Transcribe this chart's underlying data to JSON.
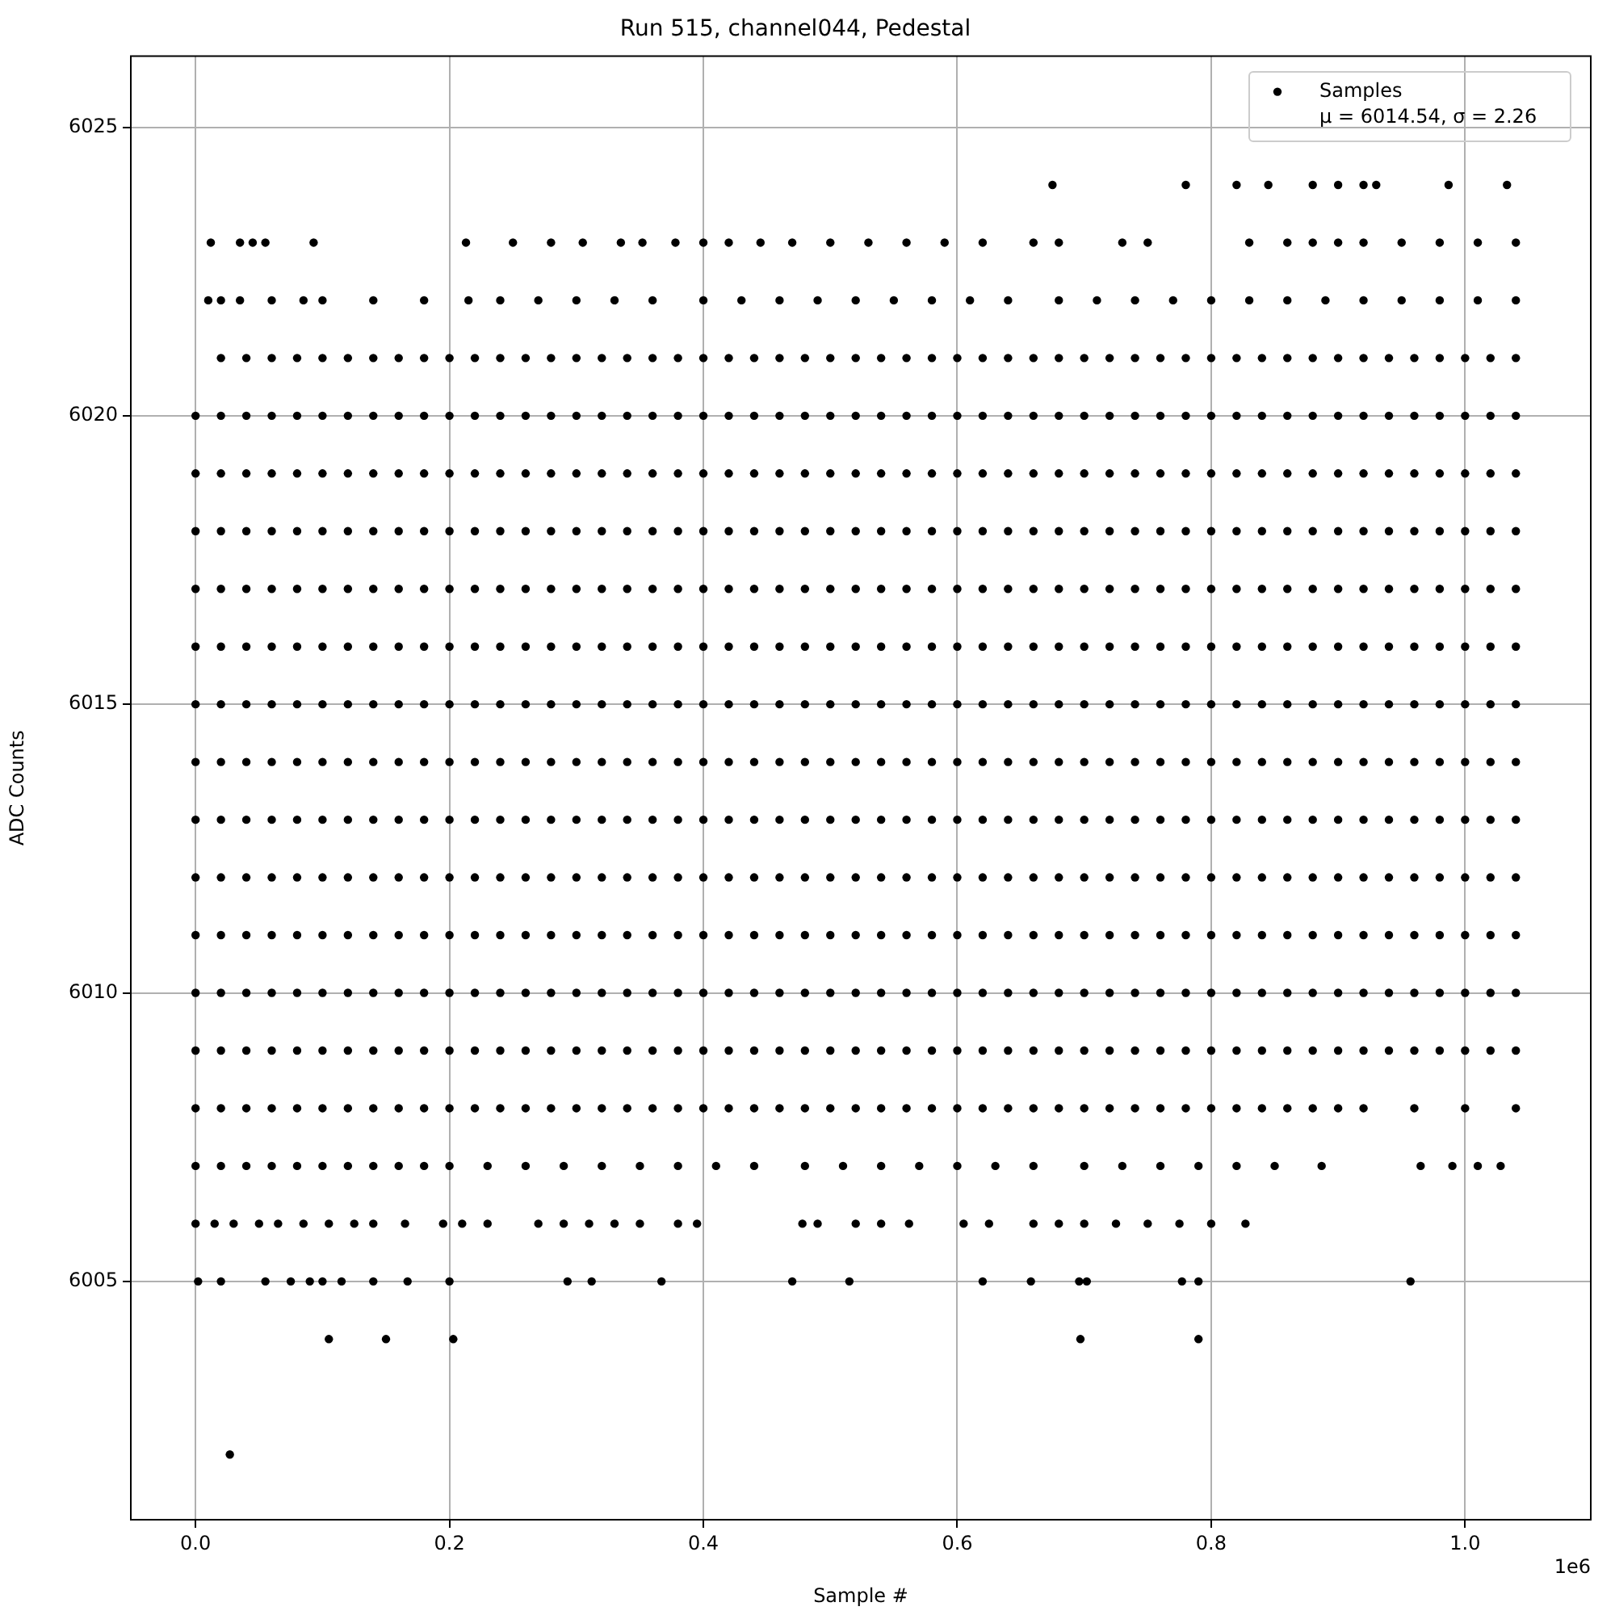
{
  "chart_data": {
    "type": "scatter",
    "title": "Run 515, channel044, Pedestal",
    "xlabel": "Sample #",
    "ylabel": "ADC Counts",
    "annotations": [
      "μ = 6014.54, σ = 2.26",
      "1e6"
    ],
    "x": [
      0,
      0.02,
      0.04,
      0.06,
      0.08,
      0.1,
      0.12,
      0.14,
      0.16,
      0.18,
      0.2,
      0.22,
      0.24,
      0.26,
      0.28,
      0.3,
      0.32,
      0.34,
      0.36,
      0.38,
      0.4,
      0.42,
      0.44,
      0.46,
      0.48,
      0.5,
      0.52,
      0.54,
      0.56,
      0.58,
      0.6,
      0.62,
      0.64,
      0.66,
      0.68,
      0.7,
      0.72,
      0.74,
      0.76,
      0.78,
      0.8,
      0.82,
      0.84,
      0.86,
      0.88,
      0.9,
      0.92,
      0.94,
      0.96,
      0.98,
      1,
      1.02,
      1.04
    ],
    "xlim": [
      -0.051,
      1.099
    ],
    "xticks": [
      {
        "value": 0,
        "label": "0.0"
      },
      0.2,
      0.4,
      0.6,
      0.8,
      {
        "value": 1,
        "label": "1.0"
      }
    ],
    "ylim": [
      6000.87,
      6026.23
    ],
    "yticks": [
      6005,
      6010,
      6015,
      6020,
      6025
    ],
    "grid": true,
    "legend": "top right",
    "marker": "circle",
    "series": [
      {
        "name": "Samples",
        "color": "#000000",
        "values": [
          6015,
          6015,
          6015,
          6015,
          6015,
          6015,
          6015,
          6015,
          6015,
          6015,
          6015,
          6015,
          6015,
          6015,
          6015,
          6015,
          6015,
          6015,
          6015,
          6015,
          6015,
          6015,
          6015,
          6015,
          6015,
          6015,
          6015,
          6015,
          6015,
          6015,
          6015,
          6015,
          6015,
          6015,
          6015,
          6015,
          6015,
          6015,
          6015,
          6015,
          6015,
          6015,
          6015,
          6015,
          6015,
          6015,
          6015,
          6015,
          6015,
          6015,
          6015,
          6015,
          6015
        ]
      },
      {
        "color": "#000000",
        "values": [
          6009,
          6009,
          6009,
          6009,
          6009,
          6009,
          6009,
          6009,
          6009,
          6009,
          6009,
          6009,
          6009,
          6009,
          6009,
          6009,
          6009,
          6009,
          6009,
          6009,
          6009,
          6009,
          6009,
          6009,
          6009,
          6009,
          6009,
          6009,
          6009,
          6009,
          6009,
          6009,
          6009,
          6009,
          6009,
          6009,
          6009,
          6009,
          6009,
          6009,
          6009,
          6009,
          6009,
          6009,
          6009,
          6009,
          6009,
          6009,
          6009,
          6009,
          6009,
          6009,
          6009
        ]
      },
      {
        "color": "#000000",
        "values": [
          6010,
          6010,
          6010,
          6010,
          6010,
          6010,
          6010,
          6010,
          6010,
          6010,
          6010,
          6010,
          6010,
          6010,
          6010,
          6010,
          6010,
          6010,
          6010,
          6010,
          6010,
          6010,
          6010,
          6010,
          6010,
          6010,
          6010,
          6010,
          6010,
          6010,
          6010,
          6010,
          6010,
          6010,
          6010,
          6010,
          6010,
          6010,
          6010,
          6010,
          6010,
          6010,
          6010,
          6010,
          6010,
          6010,
          6010,
          6010,
          6010,
          6010,
          6010,
          6010,
          6010
        ]
      },
      {
        "color": "#000000",
        "values": [
          6011,
          6011,
          6011,
          6011,
          6011,
          6011,
          6011,
          6011,
          6011,
          6011,
          6011,
          6011,
          6011,
          6011,
          6011,
          6011,
          6011,
          6011,
          6011,
          6011,
          6011,
          6011,
          6011,
          6011,
          6011,
          6011,
          6011,
          6011,
          6011,
          6011,
          6011,
          6011,
          6011,
          6011,
          6011,
          6011,
          6011,
          6011,
          6011,
          6011,
          6011,
          6011,
          6011,
          6011,
          6011,
          6011,
          6011,
          6011,
          6011,
          6011,
          6011,
          6011,
          6011
        ]
      },
      {
        "color": "#000000",
        "values": [
          6012,
          6012,
          6012,
          6012,
          6012,
          6012,
          6012,
          6012,
          6012,
          6012,
          6012,
          6012,
          6012,
          6012,
          6012,
          6012,
          6012,
          6012,
          6012,
          6012,
          6012,
          6012,
          6012,
          6012,
          6012,
          6012,
          6012,
          6012,
          6012,
          6012,
          6012,
          6012,
          6012,
          6012,
          6012,
          6012,
          6012,
          6012,
          6012,
          6012,
          6012,
          6012,
          6012,
          6012,
          6012,
          6012,
          6012,
          6012,
          6012,
          6012,
          6012,
          6012,
          6012
        ]
      },
      {
        "color": "#000000",
        "values": [
          6013,
          6013,
          6013,
          6013,
          6013,
          6013,
          6013,
          6013,
          6013,
          6013,
          6013,
          6013,
          6013,
          6013,
          6013,
          6013,
          6013,
          6013,
          6013,
          6013,
          6013,
          6013,
          6013,
          6013,
          6013,
          6013,
          6013,
          6013,
          6013,
          6013,
          6013,
          6013,
          6013,
          6013,
          6013,
          6013,
          6013,
          6013,
          6013,
          6013,
          6013,
          6013,
          6013,
          6013,
          6013,
          6013,
          6013,
          6013,
          6013,
          6013,
          6013,
          6013,
          6013
        ]
      },
      {
        "color": "#000000",
        "values": [
          6014,
          6014,
          6014,
          6014,
          6014,
          6014,
          6014,
          6014,
          6014,
          6014,
          6014,
          6014,
          6014,
          6014,
          6014,
          6014,
          6014,
          6014,
          6014,
          6014,
          6014,
          6014,
          6014,
          6014,
          6014,
          6014,
          6014,
          6014,
          6014,
          6014,
          6014,
          6014,
          6014,
          6014,
          6014,
          6014,
          6014,
          6014,
          6014,
          6014,
          6014,
          6014,
          6014,
          6014,
          6014,
          6014,
          6014,
          6014,
          6014,
          6014,
          6014,
          6014,
          6014
        ]
      },
      {
        "color": "#000000",
        "values": [
          6016,
          6016,
          6016,
          6016,
          6016,
          6016,
          6016,
          6016,
          6016,
          6016,
          6016,
          6016,
          6016,
          6016,
          6016,
          6016,
          6016,
          6016,
          6016,
          6016,
          6016,
          6016,
          6016,
          6016,
          6016,
          6016,
          6016,
          6016,
          6016,
          6016,
          6016,
          6016,
          6016,
          6016,
          6016,
          6016,
          6016,
          6016,
          6016,
          6016,
          6016,
          6016,
          6016,
          6016,
          6016,
          6016,
          6016,
          6016,
          6016,
          6016,
          6016,
          6016,
          6016
        ]
      },
      {
        "color": "#000000",
        "values": [
          6017,
          6017,
          6017,
          6017,
          6017,
          6017,
          6017,
          6017,
          6017,
          6017,
          6017,
          6017,
          6017,
          6017,
          6017,
          6017,
          6017,
          6017,
          6017,
          6017,
          6017,
          6017,
          6017,
          6017,
          6017,
          6017,
          6017,
          6017,
          6017,
          6017,
          6017,
          6017,
          6017,
          6017,
          6017,
          6017,
          6017,
          6017,
          6017,
          6017,
          6017,
          6017,
          6017,
          6017,
          6017,
          6017,
          6017,
          6017,
          6017,
          6017,
          6017,
          6017,
          6017
        ]
      },
      {
        "color": "#000000",
        "values": [
          6018,
          6018,
          6018,
          6018,
          6018,
          6018,
          6018,
          6018,
          6018,
          6018,
          6018,
          6018,
          6018,
          6018,
          6018,
          6018,
          6018,
          6018,
          6018,
          6018,
          6018,
          6018,
          6018,
          6018,
          6018,
          6018,
          6018,
          6018,
          6018,
          6018,
          6018,
          6018,
          6018,
          6018,
          6018,
          6018,
          6018,
          6018,
          6018,
          6018,
          6018,
          6018,
          6018,
          6018,
          6018,
          6018,
          6018,
          6018,
          6018,
          6018,
          6018,
          6018,
          6018
        ]
      },
      {
        "color": "#000000",
        "values": [
          6019,
          6019,
          6019,
          6019,
          6019,
          6019,
          6019,
          6019,
          6019,
          6019,
          6019,
          6019,
          6019,
          6019,
          6019,
          6019,
          6019,
          6019,
          6019,
          6019,
          6019,
          6019,
          6019,
          6019,
          6019,
          6019,
          6019,
          6019,
          6019,
          6019,
          6019,
          6019,
          6019,
          6019,
          6019,
          6019,
          6019,
          6019,
          6019,
          6019,
          6019,
          6019,
          6019,
          6019,
          6019,
          6019,
          6019,
          6019,
          6019,
          6019,
          6019,
          6019,
          6019
        ]
      },
      {
        "color": "#000000",
        "values": [
          6020,
          6020,
          6020,
          6020,
          6020,
          6020,
          6020,
          6020,
          6020,
          6020,
          6020,
          6020,
          6020,
          6020,
          6020,
          6020,
          6020,
          6020,
          6020,
          6020,
          6020,
          6020,
          6020,
          6020,
          6020,
          6020,
          6020,
          6020,
          6020,
          6020,
          6020,
          6020,
          6020,
          6020,
          6020,
          6020,
          6020,
          6020,
          6020,
          6020,
          6020,
          6020,
          6020,
          6020,
          6020,
          6020,
          6020,
          6020,
          6020,
          6020,
          6020,
          6020,
          6020
        ]
      },
      {
        "color": "#000000",
        "values": [
          null,
          6021,
          6021,
          6021,
          6021,
          6021,
          6021,
          6021,
          6021,
          6021,
          6021,
          6021,
          6021,
          6021,
          6021,
          6021,
          6021,
          6021,
          6021,
          6021,
          6021,
          6021,
          6021,
          6021,
          6021,
          6021,
          6021,
          6021,
          6021,
          6021,
          6021,
          6021,
          6021,
          6021,
          6021,
          6021,
          6021,
          6021,
          6021,
          6021,
          6021,
          6021,
          6021,
          6021,
          6021,
          6021,
          6021,
          6021,
          6021,
          6021,
          6021,
          6021,
          6021
        ]
      },
      {
        "color": "#000000",
        "values": [
          6008,
          6008,
          6008,
          6008,
          6008,
          6008,
          6008,
          6008,
          6008,
          6008,
          6008,
          6008,
          6008,
          6008,
          6008,
          6008,
          6008,
          6008,
          6008,
          6008,
          6008,
          6008,
          6008,
          6008,
          6008,
          6008,
          6008,
          6008,
          6008,
          6008,
          6008,
          6008,
          6008,
          6008,
          6008,
          6008,
          6008,
          6008,
          6008,
          6008,
          6008,
          6008,
          6008,
          6008,
          6008,
          6008,
          6008,
          null,
          6008,
          null,
          6008,
          null,
          6008
        ]
      },
      {
        "color": "#000000",
        "x": [
          0.01,
          0.02,
          0.035,
          0.06,
          0.085,
          0.1,
          0.14,
          0.18,
          0.215,
          0.24,
          0.27,
          0.3,
          0.33,
          0.36,
          0.4,
          0.43,
          0.46,
          0.49,
          0.52,
          0.55,
          0.58,
          0.61,
          0.64,
          0.68,
          0.71,
          0.74,
          0.77,
          0.8,
          0.83,
          0.86,
          0.89,
          0.92,
          0.95,
          0.98,
          1.01,
          1.04
        ],
        "values": [
          6022,
          6022,
          6022,
          6022,
          6022,
          6022,
          6022,
          6022,
          6022,
          6022,
          6022,
          6022,
          6022,
          6022,
          6022,
          6022,
          6022,
          6022,
          6022,
          6022,
          6022,
          6022,
          6022,
          6022,
          6022,
          6022,
          6022,
          6022,
          6022,
          6022,
          6022,
          6022,
          6022,
          6022,
          6022,
          6022
        ]
      },
      {
        "color": "#000000",
        "x": [
          0.012,
          0.035,
          0.045,
          0.055,
          0.093,
          0.213,
          0.25,
          0.28,
          0.305,
          0.335,
          0.352,
          0.378,
          0.4,
          0.42,
          0.445,
          0.47,
          0.5,
          0.53,
          0.56,
          0.59,
          0.62,
          0.66,
          0.68,
          0.73,
          0.75,
          0.83,
          0.86,
          0.88,
          0.9,
          0.92,
          0.95,
          0.98,
          1.01,
          1.04
        ],
        "values": [
          6023,
          6023,
          6023,
          6023,
          6023,
          6023,
          6023,
          6023,
          6023,
          6023,
          6023,
          6023,
          6023,
          6023,
          6023,
          6023,
          6023,
          6023,
          6023,
          6023,
          6023,
          6023,
          6023,
          6023,
          6023,
          6023,
          6023,
          6023,
          6023,
          6023,
          6023,
          6023,
          6023,
          6023
        ]
      },
      {
        "color": "#000000",
        "x": [
          0.675,
          0.78,
          0.82,
          0.845,
          0.88,
          0.9,
          0.92,
          0.93,
          0.987,
          1.033
        ],
        "values": [
          6024,
          6024,
          6024,
          6024,
          6024,
          6024,
          6024,
          6024,
          6024,
          6024
        ]
      },
      {
        "color": "#000000",
        "x": [
          0,
          0.02,
          0.04,
          0.06,
          0.08,
          0.1,
          0.12,
          0.14,
          0.16,
          0.18,
          0.2,
          0.23,
          0.26,
          0.29,
          0.32,
          0.35,
          0.38,
          0.41,
          0.44,
          0.48,
          0.51,
          0.54,
          0.57,
          0.6,
          0.63,
          0.66,
          0.7,
          0.73,
          0.76,
          0.79,
          0.82,
          0.85,
          0.887,
          0.965,
          0.99,
          1.01,
          1.028
        ],
        "values": [
          6007,
          6007,
          6007,
          6007,
          6007,
          6007,
          6007,
          6007,
          6007,
          6007,
          6007,
          6007,
          6007,
          6007,
          6007,
          6007,
          6007,
          6007,
          6007,
          6007,
          6007,
          6007,
          6007,
          6007,
          6007,
          6007,
          6007,
          6007,
          6007,
          6007,
          6007,
          6007,
          6007,
          6007,
          6007,
          6007,
          6007
        ]
      },
      {
        "color": "#000000",
        "x": [
          0,
          0.015,
          0.03,
          0.05,
          0.065,
          0.085,
          0.105,
          0.125,
          0.14,
          0.165,
          0.195,
          0.21,
          0.23,
          0.27,
          0.29,
          0.31,
          0.33,
          0.35,
          0.38,
          0.395,
          0.478,
          0.49,
          0.52,
          0.54,
          0.562,
          0.605,
          0.625,
          0.66,
          0.68,
          0.7,
          0.725,
          0.75,
          0.775,
          0.8,
          0.827
        ],
        "values": [
          6006,
          6006,
          6006,
          6006,
          6006,
          6006,
          6006,
          6006,
          6006,
          6006,
          6006,
          6006,
          6006,
          6006,
          6006,
          6006,
          6006,
          6006,
          6006,
          6006,
          6006,
          6006,
          6006,
          6006,
          6006,
          6006,
          6006,
          6006,
          6006,
          6006,
          6006,
          6006,
          6006,
          6006,
          6006
        ]
      },
      {
        "color": "#000000",
        "x": [
          0.002,
          0.02,
          0.055,
          0.075,
          0.09,
          0.1,
          0.115,
          0.14,
          0.167,
          0.2,
          0.293,
          0.312,
          0.367,
          0.47,
          0.515,
          0.62,
          0.658,
          0.696,
          0.702,
          0.777,
          0.79,
          0.957
        ],
        "values": [
          6005,
          6005,
          6005,
          6005,
          6005,
          6005,
          6005,
          6005,
          6005,
          6005,
          6005,
          6005,
          6005,
          6005,
          6005,
          6005,
          6005,
          6005,
          6005,
          6005,
          6005,
          6005
        ]
      },
      {
        "color": "#000000",
        "x": [
          0.105,
          0.15,
          0.203,
          0.697,
          0.79
        ],
        "values": [
          6004,
          6004,
          6004,
          6004,
          6004
        ]
      },
      {
        "color": "#000000",
        "x": [
          0.027
        ],
        "values": [
          6002
        ]
      }
    ]
  }
}
